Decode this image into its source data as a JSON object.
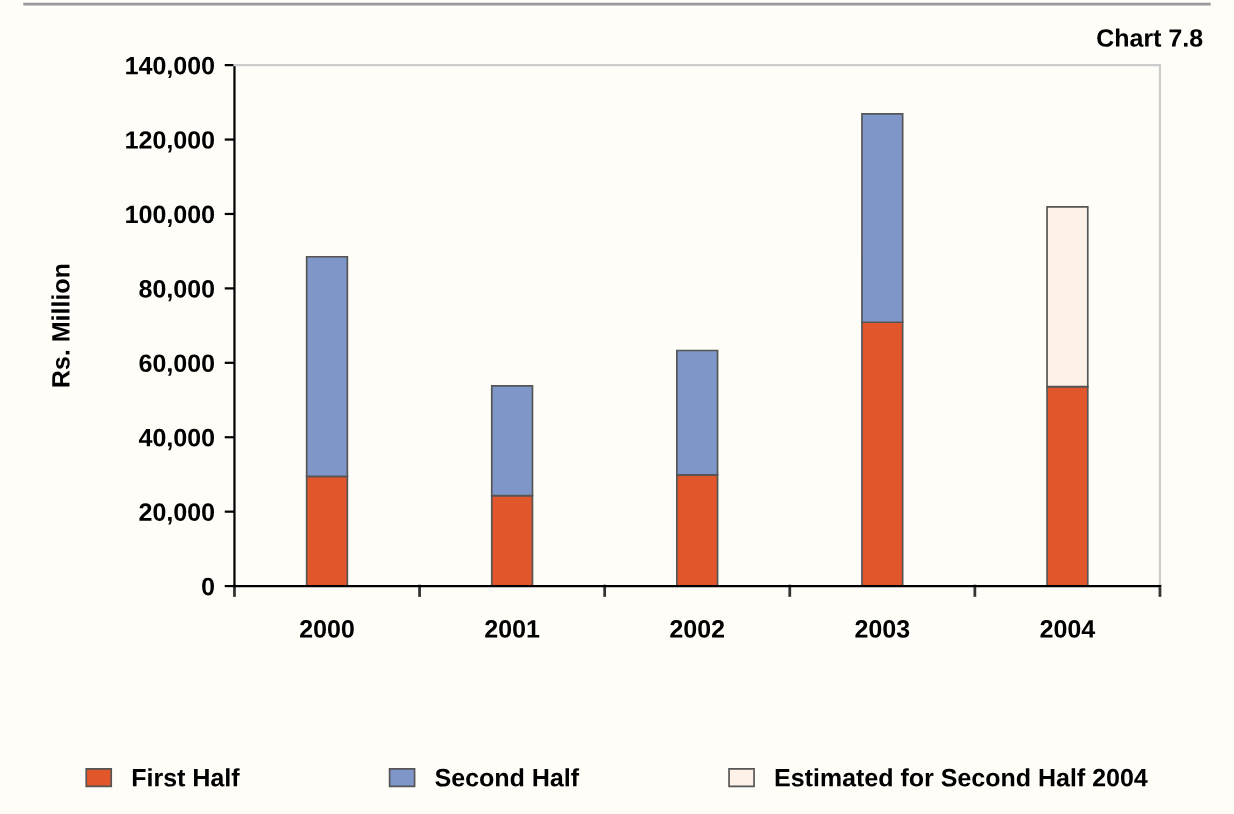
{
  "chart_data": {
    "type": "bar",
    "title": "Chart 7.8",
    "ylabel": "Rs. Million",
    "stacked": true,
    "categories": [
      "2000",
      "2001",
      "2002",
      "2003",
      "2004"
    ],
    "series": [
      {
        "name": "First Half",
        "color": "#e2562b",
        "values": [
          29500,
          24300,
          29900,
          70900,
          53600
        ]
      },
      {
        "name": "Second Half",
        "color": "#7f97c8",
        "values": [
          59000,
          29500,
          33400,
          56000,
          null
        ]
      },
      {
        "name": "Estimated for Second Half 2004",
        "color": "#fdf1e8",
        "values": [
          null,
          null,
          null,
          null,
          48300
        ]
      }
    ],
    "ylim": [
      0,
      140000
    ],
    "yticks": [
      {
        "value": 0,
        "label": "0"
      },
      {
        "value": 20000,
        "label": "20,000"
      },
      {
        "value": 40000,
        "label": "40,000"
      },
      {
        "value": 60000,
        "label": "60,000"
      },
      {
        "value": 80000,
        "label": "80,000"
      },
      {
        "value": 100000,
        "label": "100,000"
      },
      {
        "value": 120000,
        "label": "120,000"
      },
      {
        "value": 140000,
        "label": "140,000"
      }
    ],
    "grid": false,
    "legend": "bottom"
  }
}
